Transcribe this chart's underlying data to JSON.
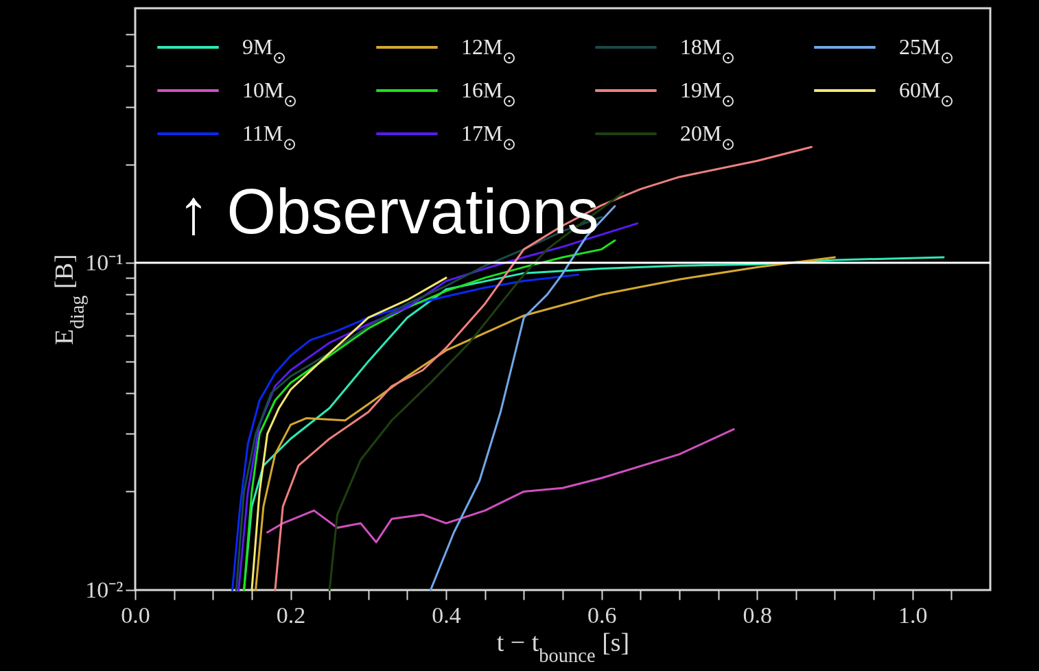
{
  "chart_data": {
    "type": "line",
    "xlabel": "t − t$_{bounce}$ [s]",
    "ylabel": "E$_{diag}$ [B]",
    "log": "y",
    "xlim": [
      0,
      1.1
    ],
    "ylim": [
      0.01,
      0.6
    ],
    "xticks": [
      {
        "value": 0,
        "label": "0.0"
      },
      {
        "value": 0.05,
        "label": null
      },
      {
        "value": 0.1,
        "label": null
      },
      {
        "value": 0.15,
        "label": null
      },
      0.2,
      {
        "value": 0.25,
        "label": null
      },
      {
        "value": 0.3,
        "label": null
      },
      {
        "value": 0.35,
        "label": null
      },
      0.4,
      {
        "value": 0.45,
        "label": null
      },
      {
        "value": 0.5,
        "label": null
      },
      {
        "value": 0.55,
        "label": null
      },
      0.6,
      {
        "value": 0.65,
        "label": null
      },
      {
        "value": 0.7,
        "label": null
      },
      {
        "value": 0.75,
        "label": null
      },
      0.8,
      {
        "value": 0.85,
        "label": null
      },
      {
        "value": 0.9,
        "label": null
      },
      {
        "value": 0.95,
        "label": null
      },
      {
        "value": 1,
        "label": "1.0"
      },
      {
        "value": 1.05,
        "label": null
      }
    ],
    "yticks": [
      {
        "value": 0.01,
        "label": "10⁻²"
      },
      {
        "value": 0.02,
        "label": null
      },
      {
        "value": 0.03,
        "label": null
      },
      {
        "value": 0.04,
        "label": null
      },
      {
        "value": 0.05,
        "label": null
      },
      {
        "value": 0.06,
        "label": null
      },
      {
        "value": 0.07,
        "label": null
      },
      {
        "value": 0.08,
        "label": null
      },
      {
        "value": 0.09,
        "label": null
      },
      {
        "value": 0.1,
        "label": "10⁻¹"
      },
      {
        "value": 0.2,
        "label": null
      },
      {
        "value": 0.3,
        "label": null
      },
      {
        "value": 0.4,
        "label": null
      },
      {
        "value": 0.5,
        "label": null
      }
    ],
    "legend": "top",
    "line_style": "solid",
    "ref_lines": [
      {
        "axis": "y",
        "value": 0.1,
        "color": "#ffffff"
      }
    ],
    "annotations": [
      "↑ Observations"
    ],
    "series": [
      {
        "name": "9M$_{⊙}$",
        "color": "#2ee8b5",
        "x": [
          0.14,
          0.15,
          0.165,
          0.2,
          0.25,
          0.3,
          0.35,
          0.4,
          0.5,
          0.6,
          0.7,
          0.8,
          0.9,
          1.04
        ],
        "values": [
          0.01,
          0.018,
          0.024,
          0.029,
          0.036,
          0.05,
          0.068,
          0.083,
          0.093,
          0.096,
          0.098,
          0.099,
          0.102,
          0.104
        ]
      },
      {
        "name": "10M$_{⊙}$",
        "color": "#d050c0",
        "x": [
          0.17,
          0.19,
          0.23,
          0.26,
          0.29,
          0.31,
          0.33,
          0.37,
          0.4,
          0.45,
          0.5,
          0.55,
          0.6,
          0.7,
          0.77
        ],
        "values": [
          0.015,
          0.016,
          0.0175,
          0.0155,
          0.016,
          0.014,
          0.0165,
          0.017,
          0.016,
          0.0175,
          0.02,
          0.0205,
          0.022,
          0.026,
          0.031
        ]
      },
      {
        "name": "11M$_{⊙}$",
        "color": "#0a28f0",
        "x": [
          0.125,
          0.135,
          0.145,
          0.16,
          0.18,
          0.2,
          0.225,
          0.26,
          0.3,
          0.35,
          0.4,
          0.45,
          0.5,
          0.57
        ],
        "values": [
          0.01,
          0.018,
          0.028,
          0.038,
          0.046,
          0.052,
          0.058,
          0.062,
          0.068,
          0.074,
          0.079,
          0.084,
          0.088,
          0.092
        ]
      },
      {
        "name": "12M$_{⊙}$",
        "color": "#d4a830",
        "x": [
          0.155,
          0.165,
          0.18,
          0.2,
          0.22,
          0.27,
          0.3,
          0.35,
          0.4,
          0.5,
          0.6,
          0.7,
          0.8,
          0.9
        ],
        "values": [
          0.01,
          0.018,
          0.026,
          0.032,
          0.0335,
          0.033,
          0.037,
          0.045,
          0.054,
          0.069,
          0.08,
          0.089,
          0.097,
          0.104
        ]
      },
      {
        "name": "16M$_{⊙}$",
        "color": "#20e020",
        "x": [
          0.14,
          0.15,
          0.16,
          0.18,
          0.2,
          0.25,
          0.3,
          0.35,
          0.4,
          0.45,
          0.5,
          0.55,
          0.6,
          0.617
        ],
        "values": [
          0.01,
          0.02,
          0.03,
          0.038,
          0.043,
          0.052,
          0.063,
          0.073,
          0.082,
          0.09,
          0.097,
          0.104,
          0.11,
          0.117
        ]
      },
      {
        "name": "17M$_{⊙}$",
        "color": "#5a1af0",
        "x": [
          0.133,
          0.145,
          0.16,
          0.18,
          0.2,
          0.25,
          0.3,
          0.35,
          0.4,
          0.45,
          0.5,
          0.55,
          0.6,
          0.646
        ],
        "values": [
          0.01,
          0.02,
          0.032,
          0.042,
          0.047,
          0.057,
          0.065,
          0.073,
          0.088,
          0.096,
          0.104,
          0.112,
          0.122,
          0.132
        ]
      },
      {
        "name": "18M$_{⊙}$",
        "color": "#1a4a48",
        "x": [
          0.13,
          0.14,
          0.155,
          0.175,
          0.2,
          0.25,
          0.3,
          0.35,
          0.4,
          0.45,
          0.5,
          0.55,
          0.6
        ],
        "values": [
          0.01,
          0.02,
          0.03,
          0.04,
          0.045,
          0.053,
          0.064,
          0.075,
          0.085,
          0.098,
          0.11,
          0.125,
          0.138
        ]
      },
      {
        "name": "19M$_{⊙}$",
        "color": "#f08080",
        "x": [
          0.18,
          0.19,
          0.21,
          0.25,
          0.3,
          0.33,
          0.37,
          0.4,
          0.45,
          0.5,
          0.55,
          0.6,
          0.65,
          0.7,
          0.8,
          0.87
        ],
        "values": [
          0.01,
          0.018,
          0.024,
          0.029,
          0.035,
          0.042,
          0.047,
          0.055,
          0.075,
          0.11,
          0.13,
          0.15,
          0.168,
          0.183,
          0.205,
          0.226
        ]
      },
      {
        "name": "20M$_{⊙}$",
        "color": "#1e4010",
        "x": [
          0.25,
          0.26,
          0.29,
          0.33,
          0.38,
          0.43,
          0.47,
          0.5,
          0.53,
          0.57,
          0.628
        ],
        "values": [
          0.01,
          0.017,
          0.025,
          0.033,
          0.043,
          0.057,
          0.075,
          0.092,
          0.11,
          0.13,
          0.164
        ]
      },
      {
        "name": "25M$_{⊙}$",
        "color": "#70a8e8",
        "x": [
          0.38,
          0.41,
          0.443,
          0.47,
          0.5,
          0.53,
          0.549,
          0.58,
          0.617
        ],
        "values": [
          0.01,
          0.015,
          0.0216,
          0.035,
          0.068,
          0.08,
          0.092,
          0.12,
          0.149
        ]
      },
      {
        "name": "60M$_{⊙}$",
        "color": "#f5e870",
        "x": [
          0.15,
          0.16,
          0.17,
          0.185,
          0.2,
          0.25,
          0.3,
          0.35,
          0.4
        ],
        "values": [
          0.01,
          0.02,
          0.03,
          0.036,
          0.041,
          0.053,
          0.068,
          0.077,
          0.09
        ]
      }
    ]
  }
}
